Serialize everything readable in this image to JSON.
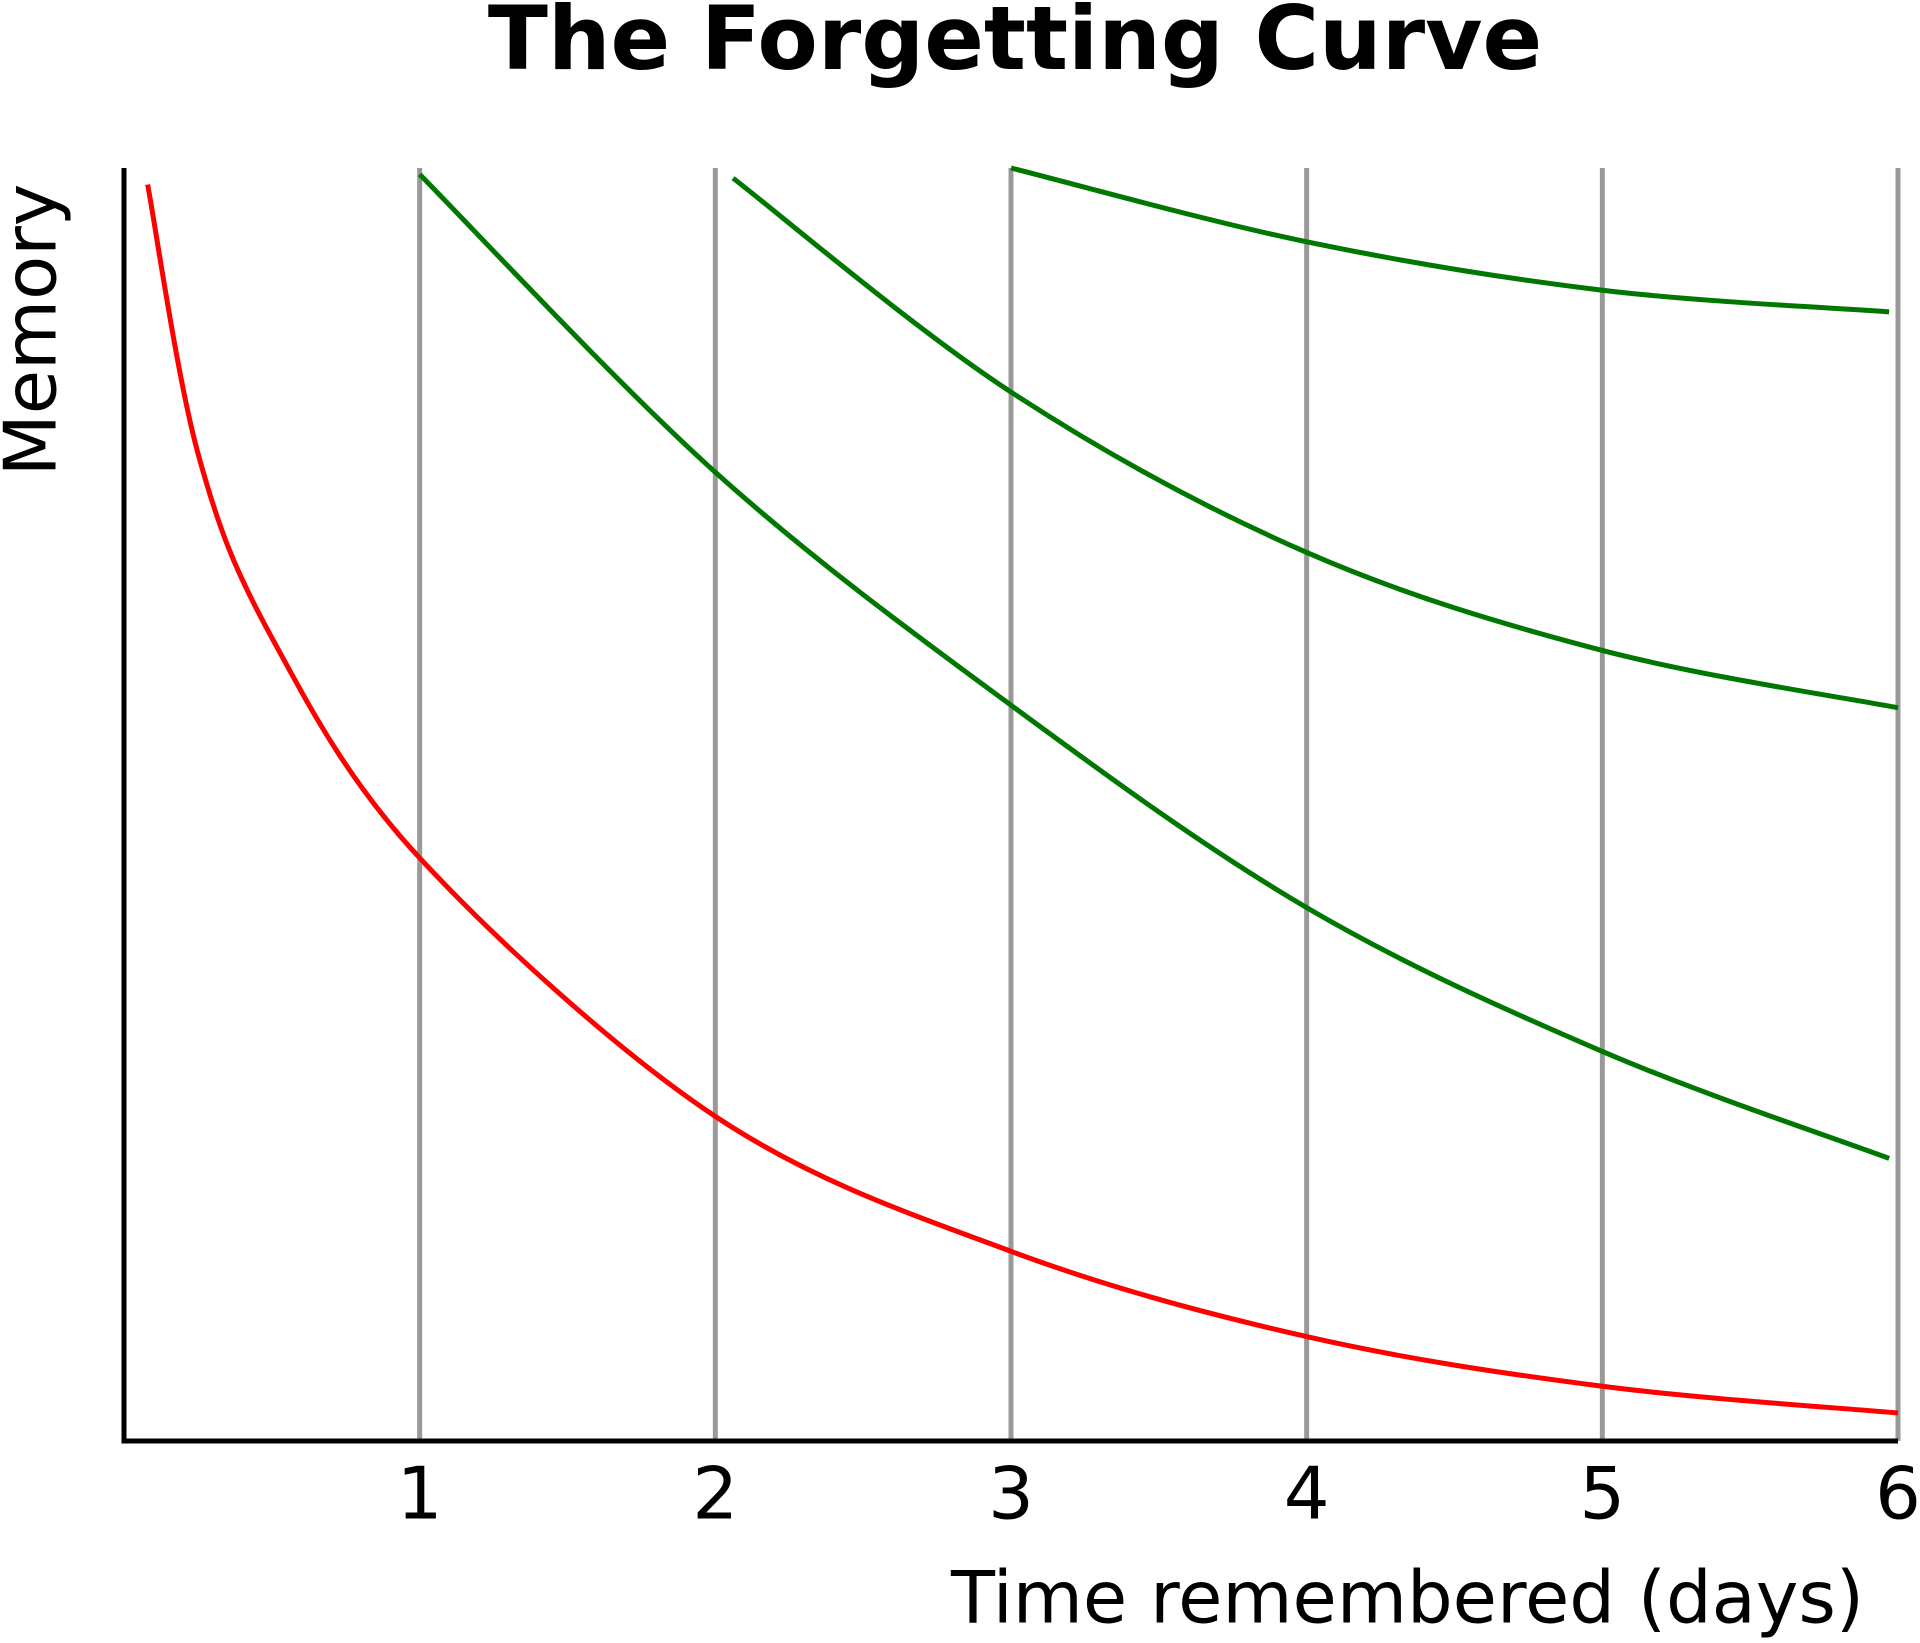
{
  "chart_data": {
    "type": "line",
    "title": "The Forgetting Curve",
    "x_label": "Time remembered (days)",
    "y_label": "Memory",
    "xlim": [
      0,
      6
    ],
    "xticks": [
      1,
      2,
      3,
      4,
      5,
      6
    ],
    "ylim": [
      0,
      100
    ],
    "grid": true,
    "series": [
      {
        "color": "#ff0000",
        "x": [
          0.08,
          0.25,
          0.5,
          1,
          2,
          3,
          4,
          5,
          6
        ],
        "values": [
          98.7,
          77.6,
          63.1,
          45.8,
          25.5,
          14.9,
          8.2,
          4.3,
          2.2
        ]
      },
      {
        "color": "#007700",
        "x": [
          1,
          2,
          3,
          4,
          5,
          5.97
        ],
        "values": [
          99.5,
          76.1,
          57.8,
          41.9,
          30.6,
          22.2
        ]
      },
      {
        "color": "#007700",
        "x": [
          2.06,
          3,
          4,
          5,
          6
        ],
        "values": [
          99.2,
          82.4,
          69.8,
          62.1,
          57.6
        ]
      },
      {
        "color": "#007700",
        "x": [
          3,
          4,
          5,
          5.97
        ],
        "values": [
          100,
          94.2,
          90.4,
          88.7
        ]
      }
    ]
  }
}
